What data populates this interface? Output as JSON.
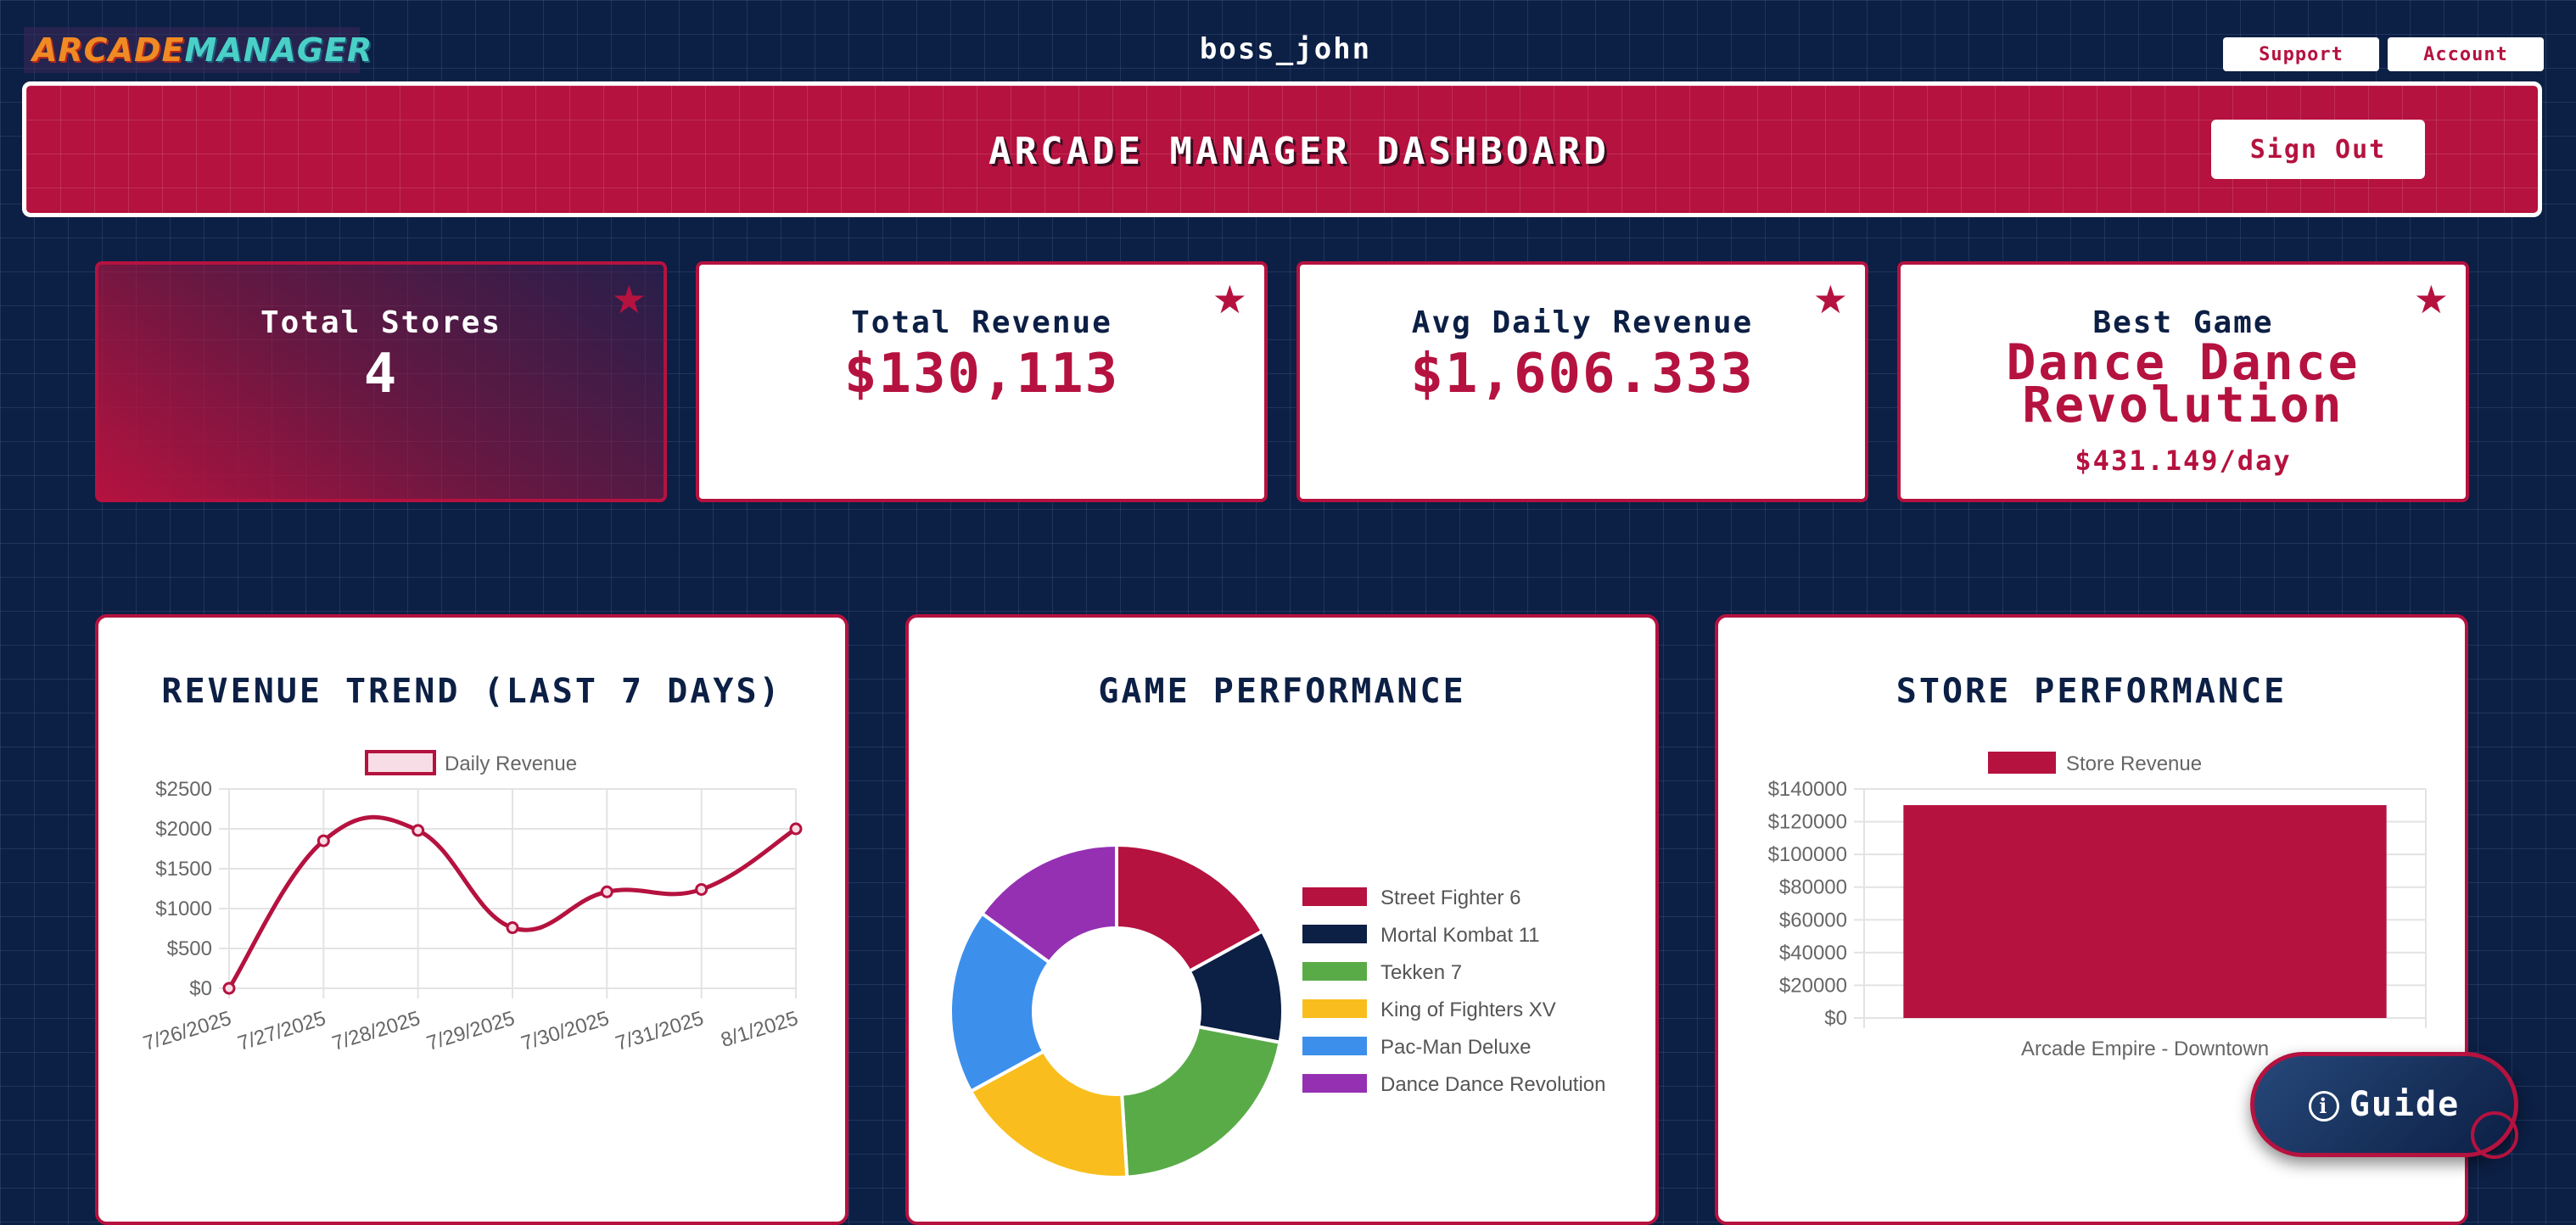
{
  "header": {
    "logo_part1": "ARCADE",
    "logo_part2": "MANAGER",
    "username": "boss_john",
    "support_label": "Support",
    "account_label": "Account"
  },
  "banner": {
    "title": "ARCADE MANAGER DASHBOARD",
    "signout_label": "Sign Out"
  },
  "stats": [
    {
      "label": "Total Stores",
      "value": "4",
      "icon": "star-icon"
    },
    {
      "label": "Total Revenue",
      "value": "$130,113",
      "icon": "star-icon"
    },
    {
      "label": "Avg Daily Revenue",
      "value": "$1,606.333",
      "icon": "star-icon"
    },
    {
      "label": "Best Game",
      "value_line1": "Dance Dance",
      "value_line2": "Revolution",
      "sub": "$431.149/day",
      "icon": "star-icon"
    }
  ],
  "colors": {
    "navy": "#0c1f44",
    "crimson": "#b5123f",
    "white": "#ffffff"
  },
  "panels": {
    "revenue_title": "REVENUE TREND (LAST 7 DAYS)",
    "game_title": "GAME PERFORMANCE",
    "store_title": "STORE PERFORMANCE"
  },
  "guide": {
    "label": "Guide",
    "icon": "info-icon"
  },
  "chart_data": [
    {
      "type": "line",
      "title": "REVENUE TREND (LAST 7 DAYS)",
      "series": [
        {
          "name": "Daily Revenue",
          "color": "#b5123f",
          "values": [
            0,
            1850,
            1980,
            760,
            1210,
            1240,
            2000
          ]
        }
      ],
      "categories": [
        "7/26/2025",
        "7/27/2025",
        "7/28/2025",
        "7/29/2025",
        "7/30/2025",
        "7/31/2025",
        "8/1/2025"
      ],
      "ylim": [
        0,
        2500
      ],
      "yticks": [
        "$0",
        "$500",
        "$1000",
        "$1500",
        "$2000",
        "$2500"
      ],
      "legend": "top",
      "grid": true
    },
    {
      "type": "pie",
      "title": "GAME PERFORMANCE",
      "labels": [
        "Street Fighter 6",
        "Mortal Kombat 11",
        "Tekken 7",
        "King of Fighters XV",
        "Pac-Man Deluxe",
        "Dance Dance Revolution"
      ],
      "values": [
        17,
        11,
        21,
        18,
        18,
        15
      ],
      "colors": [
        "#b5123f",
        "#0c1f44",
        "#59ab47",
        "#f9be1d",
        "#3d8fec",
        "#9530b2"
      ],
      "legend": "right"
    },
    {
      "type": "bar",
      "title": "STORE PERFORMANCE",
      "series": [
        {
          "name": "Store Revenue",
          "color": "#b5123f",
          "values": [
            130113
          ]
        }
      ],
      "categories": [
        "Arcade Empire - Downtown"
      ],
      "ylim": [
        0,
        140000
      ],
      "yticks": [
        "$0",
        "$20000",
        "$40000",
        "$60000",
        "$80000",
        "$100000",
        "$120000",
        "$140000"
      ],
      "legend": "top",
      "grid": true
    }
  ]
}
